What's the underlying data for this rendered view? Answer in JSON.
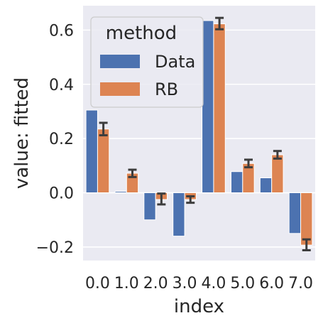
{
  "chart_data": {
    "type": "bar",
    "xlabel": "index",
    "ylabel": "value: fitted",
    "categories": [
      "0.0",
      "1.0",
      "2.0",
      "3.0",
      "4.0",
      "5.0",
      "6.0",
      "7.0"
    ],
    "ylim": [
      -0.25,
      0.69
    ],
    "yticks": [
      -0.2,
      0.0,
      0.2,
      0.4,
      0.6
    ],
    "ytick_labels": [
      "−0.2",
      "0.0",
      "0.2",
      "0.4",
      "0.6"
    ],
    "grid": true,
    "legend": {
      "title": "method",
      "position": "top-left"
    },
    "series": [
      {
        "name": "Data",
        "color": "#4c72b0",
        "values": [
          0.305,
          0.005,
          -0.1,
          -0.16,
          0.635,
          0.078,
          0.055,
          -0.15
        ]
      },
      {
        "name": "RB",
        "color": "#dd8452",
        "values": [
          0.235,
          0.072,
          -0.025,
          -0.025,
          0.623,
          0.108,
          0.14,
          -0.193
        ],
        "errors": [
          [
            0.212,
            0.258
          ],
          [
            0.058,
            0.085
          ],
          [
            -0.043,
            -0.003
          ],
          [
            -0.037,
            -0.013
          ],
          [
            0.603,
            0.645
          ],
          [
            0.094,
            0.122
          ],
          [
            0.126,
            0.154
          ],
          [
            -0.212,
            -0.172
          ]
        ]
      }
    ],
    "colors": {
      "background": "#eaeaf2",
      "grid": "#ffffff",
      "error_bar": "#3d3d3d"
    }
  }
}
